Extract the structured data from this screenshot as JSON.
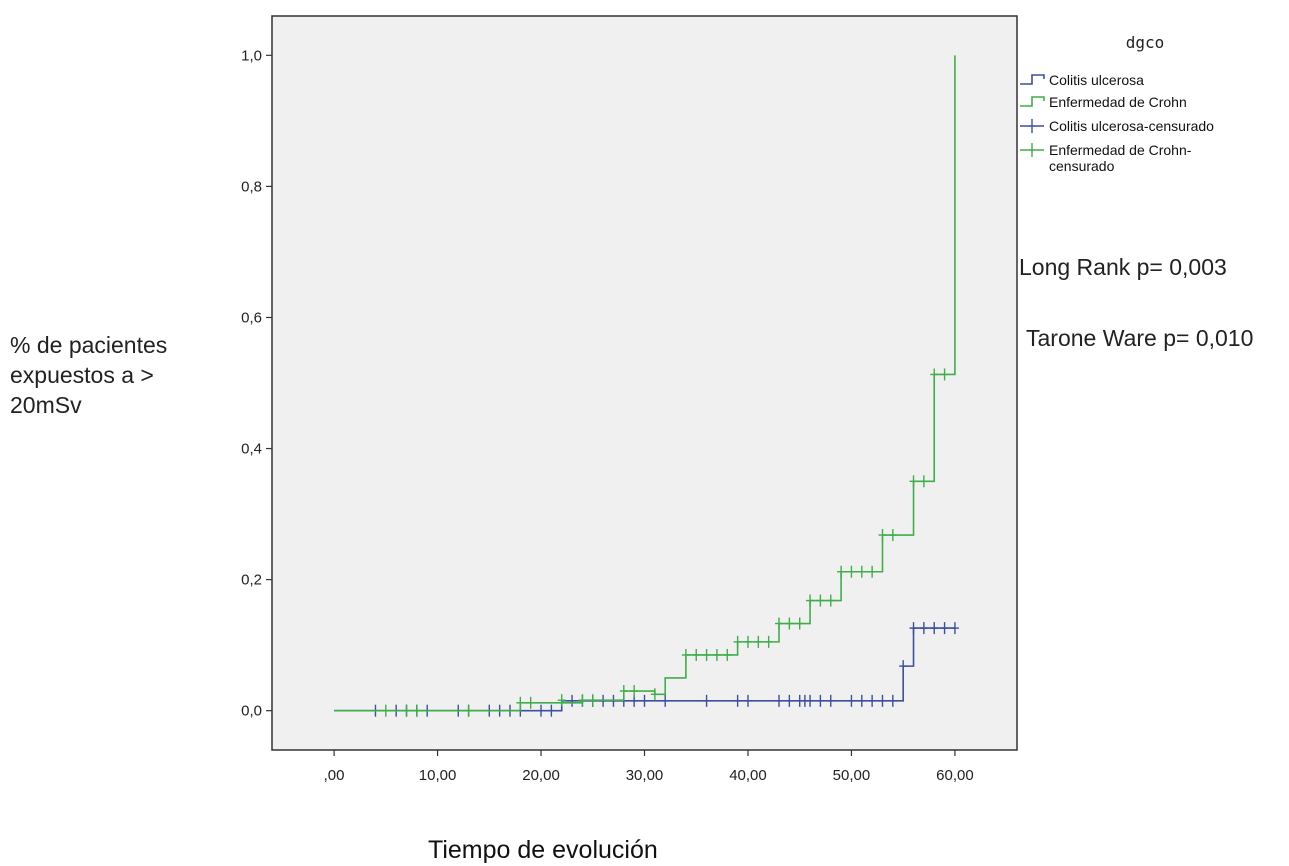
{
  "chart_data": {
    "type": "line",
    "subtype": "step",
    "xlabel": "Tiempo de evolución",
    "ylabel": "% de pacientes expuestos a > 20mSv",
    "xlim": [
      -6,
      66
    ],
    "ylim": [
      -0.06,
      1.06
    ],
    "x_ticks": [
      0,
      10,
      20,
      30,
      40,
      50,
      60
    ],
    "x_tick_labels": [
      ",00",
      "10,00",
      "20,00",
      "30,00",
      "40,00",
      "50,00",
      "60,00"
    ],
    "y_ticks": [
      0,
      0.2,
      0.4,
      0.6,
      0.8,
      1.0
    ],
    "y_tick_labels": [
      "0,0",
      "0,2",
      "0,4",
      "0,6",
      "0,8",
      "1,0"
    ],
    "grid": false,
    "legend": {
      "title": "dgco",
      "position": "right-top",
      "entries": [
        {
          "label": "Colitis ulcerosa",
          "kind": "step",
          "color": "#3d4f9f"
        },
        {
          "label": "Enfermedad de Crohn",
          "kind": "step",
          "color": "#3fae49"
        },
        {
          "label": "Colitis ulcerosa-censurado",
          "kind": "censor",
          "color": "#3d4f9f"
        },
        {
          "label": "Enfermedad de Crohn-\ncensurado",
          "kind": "censor",
          "color": "#3fae49"
        }
      ]
    },
    "series": [
      {
        "name": "Colitis ulcerosa",
        "color": "#3d4f9f",
        "steps": [
          [
            0,
            0
          ],
          [
            22,
            0.015
          ],
          [
            55,
            0.068
          ],
          [
            56,
            0.126
          ],
          [
            60,
            0.126
          ]
        ],
        "censored": [
          [
            4,
            0
          ],
          [
            6,
            0
          ],
          [
            7,
            0
          ],
          [
            8,
            0
          ],
          [
            9,
            0
          ],
          [
            12,
            0
          ],
          [
            13,
            0
          ],
          [
            15,
            0
          ],
          [
            16,
            0
          ],
          [
            17,
            0
          ],
          [
            18,
            0
          ],
          [
            20,
            0
          ],
          [
            21,
            0
          ],
          [
            23,
            0.015
          ],
          [
            24,
            0.015
          ],
          [
            25,
            0.015
          ],
          [
            26,
            0.015
          ],
          [
            27,
            0.015
          ],
          [
            28,
            0.015
          ],
          [
            29,
            0.015
          ],
          [
            30,
            0.015
          ],
          [
            32,
            0.015
          ],
          [
            36,
            0.015
          ],
          [
            39,
            0.015
          ],
          [
            40,
            0.015
          ],
          [
            43,
            0.015
          ],
          [
            44,
            0.015
          ],
          [
            45,
            0.015
          ],
          [
            45.5,
            0.015
          ],
          [
            46,
            0.015
          ],
          [
            47,
            0.015
          ],
          [
            48,
            0.015
          ],
          [
            50,
            0.015
          ],
          [
            51,
            0.015
          ],
          [
            52,
            0.015
          ],
          [
            53,
            0.015
          ],
          [
            54,
            0.015
          ],
          [
            55,
            0.068
          ],
          [
            56,
            0.126
          ],
          [
            57,
            0.126
          ],
          [
            58,
            0.126
          ],
          [
            59,
            0.126
          ],
          [
            60,
            0.126
          ]
        ]
      },
      {
        "name": "Enfermedad de Crohn",
        "color": "#3fae49",
        "steps": [
          [
            0,
            0
          ],
          [
            18,
            0.012
          ],
          [
            24,
            0.016
          ],
          [
            28,
            0.03
          ],
          [
            31,
            0.025
          ],
          [
            32,
            0.05
          ],
          [
            34,
            0.085
          ],
          [
            39,
            0.105
          ],
          [
            43,
            0.133
          ],
          [
            46,
            0.168
          ],
          [
            49,
            0.212
          ],
          [
            53,
            0.268
          ],
          [
            56,
            0.35
          ],
          [
            58,
            0.513
          ],
          [
            60,
            1.0
          ]
        ],
        "censored": [
          [
            5,
            0
          ],
          [
            7,
            0
          ],
          [
            8,
            0
          ],
          [
            13,
            0
          ],
          [
            18,
            0.012
          ],
          [
            19,
            0.012
          ],
          [
            22,
            0.016
          ],
          [
            24,
            0.016
          ],
          [
            25,
            0.016
          ],
          [
            28,
            0.03
          ],
          [
            29,
            0.03
          ],
          [
            31,
            0.025
          ],
          [
            34,
            0.085
          ],
          [
            35,
            0.085
          ],
          [
            36,
            0.085
          ],
          [
            37,
            0.085
          ],
          [
            38,
            0.085
          ],
          [
            39,
            0.105
          ],
          [
            40,
            0.105
          ],
          [
            41,
            0.105
          ],
          [
            42,
            0.105
          ],
          [
            43,
            0.133
          ],
          [
            44,
            0.133
          ],
          [
            45,
            0.133
          ],
          [
            46,
            0.168
          ],
          [
            47,
            0.168
          ],
          [
            48,
            0.168
          ],
          [
            49,
            0.212
          ],
          [
            50,
            0.212
          ],
          [
            51,
            0.212
          ],
          [
            52,
            0.212
          ],
          [
            53,
            0.268
          ],
          [
            54,
            0.268
          ],
          [
            56,
            0.35
          ],
          [
            57,
            0.35
          ],
          [
            58,
            0.513
          ],
          [
            59,
            0.513
          ]
        ]
      }
    ]
  },
  "annotations": {
    "long_rank": "Long Rank p= 0,003",
    "tarone_ware": "Tarone Ware p= 0,010"
  }
}
